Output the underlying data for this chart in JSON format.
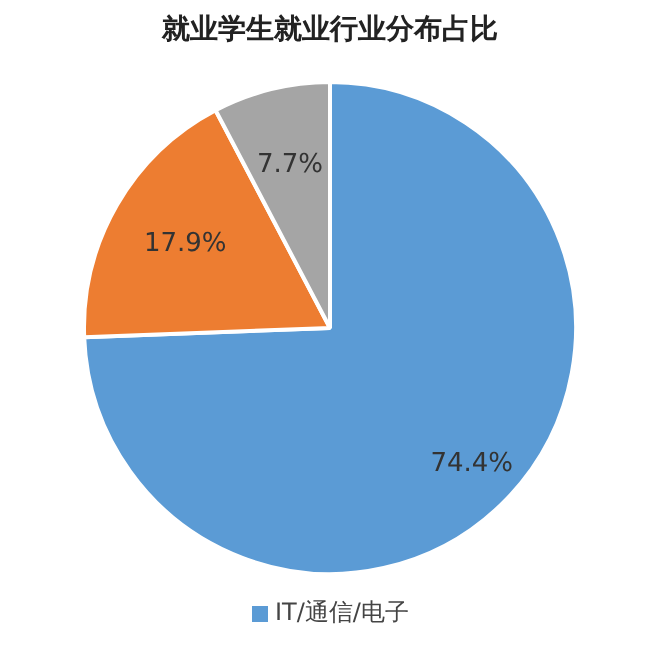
{
  "chart_data": {
    "type": "pie",
    "title": "就业学生就业行业分布占比",
    "categories": [
      "IT/通信/电子",
      null,
      null
    ],
    "values": [
      74.4,
      17.9,
      7.7
    ],
    "colors": [
      "#5b9bd5",
      "#ed7d31",
      "#a5a5a5"
    ],
    "value_labels": [
      "74.4%",
      "17.9%",
      "7.7%"
    ],
    "legend": "bottom"
  }
}
